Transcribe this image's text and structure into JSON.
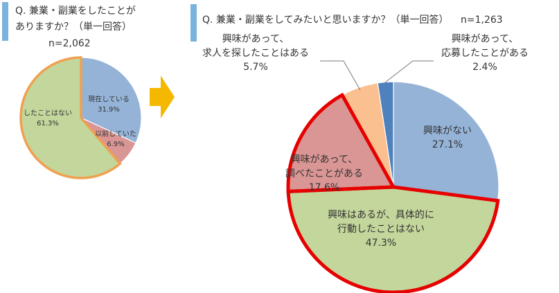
{
  "colors": {
    "title_bar": "#7ab4dc",
    "arrow": "#f5b800",
    "text": "#333333",
    "highlight_small": "#f0a050",
    "highlight_large": "#e60000",
    "leader": "#777777"
  },
  "chart_data": [
    {
      "type": "pie",
      "title_lines": [
        "Q. 兼業・副業をしたことが",
        "ありますか？（単一回答）"
      ],
      "n_label": "n=2,062",
      "slices": [
        {
          "label_lines": [
            "現在している"
          ],
          "pct_text": "31.9%",
          "value": 31.9,
          "color": "#95b3d7",
          "highlight": false
        },
        {
          "label_lines": [
            "以前していた"
          ],
          "pct_text": "6.9%",
          "value": 6.9,
          "color": "#d99694",
          "highlight": false
        },
        {
          "label_lines": [
            "したことはない"
          ],
          "pct_text": "61.3%",
          "value": 61.3,
          "color": "#c3d69b",
          "highlight": true
        }
      ]
    },
    {
      "type": "pie",
      "title_lines": [
        "Q. 兼業・副業をしてみたいと思いますか？（単一回答）"
      ],
      "n_label": "n=1,263",
      "slices": [
        {
          "label_lines": [
            "興味がない"
          ],
          "pct_text": "27.1%",
          "value": 27.1,
          "color": "#95b3d7",
          "highlight": false
        },
        {
          "label_lines": [
            "興味はあるが、具体的に",
            "行動したことはない"
          ],
          "pct_text": "47.3%",
          "value": 47.3,
          "color": "#c3d69b",
          "highlight": true
        },
        {
          "label_lines": [
            "興味があって、",
            "調べたことがある"
          ],
          "pct_text": "17.6%",
          "value": 17.6,
          "color": "#d99694",
          "highlight": true
        },
        {
          "label_lines": [
            "興味があって、",
            "求人を探したことはある"
          ],
          "pct_text": "5.7%",
          "value": 5.7,
          "color": "#fac090",
          "highlight": false
        },
        {
          "label_lines": [
            "興味があって、",
            "応募したことがある"
          ],
          "pct_text": "2.4%",
          "value": 2.4,
          "color": "#4f81bd",
          "highlight": false
        }
      ]
    }
  ]
}
